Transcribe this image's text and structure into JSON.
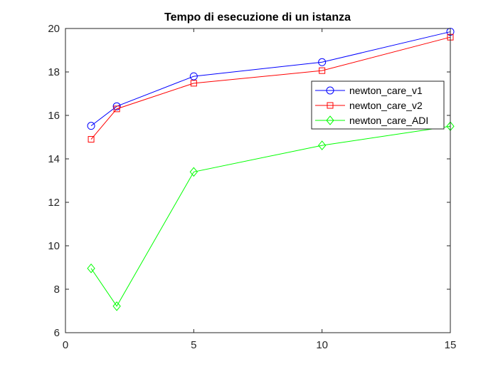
{
  "chart_data": {
    "type": "line",
    "title": "Tempo di esecuzione di un istanza",
    "xlabel": "",
    "ylabel": "",
    "xlim": [
      0,
      15
    ],
    "ylim": [
      6,
      20
    ],
    "xticks": [
      0,
      5,
      10,
      15
    ],
    "yticks": [
      6,
      8,
      10,
      12,
      14,
      16,
      18,
      20
    ],
    "grid": false,
    "legend_position": "upper-right",
    "series": [
      {
        "name": "newton_care_v1",
        "color": "#0000ff",
        "marker": "circle",
        "x": [
          1,
          2,
          5,
          10,
          15
        ],
        "y": [
          15.52,
          16.42,
          17.8,
          18.45,
          19.85
        ]
      },
      {
        "name": "newton_care_v2",
        "color": "#ff0000",
        "marker": "square",
        "x": [
          1,
          2,
          5,
          10,
          15
        ],
        "y": [
          14.9,
          16.3,
          17.48,
          18.06,
          19.6
        ]
      },
      {
        "name": "newton_care_ADI",
        "color": "#00ff00",
        "marker": "diamond",
        "x": [
          1,
          2,
          5,
          10,
          15
        ],
        "y": [
          8.96,
          7.22,
          13.4,
          14.62,
          15.5
        ]
      }
    ]
  }
}
